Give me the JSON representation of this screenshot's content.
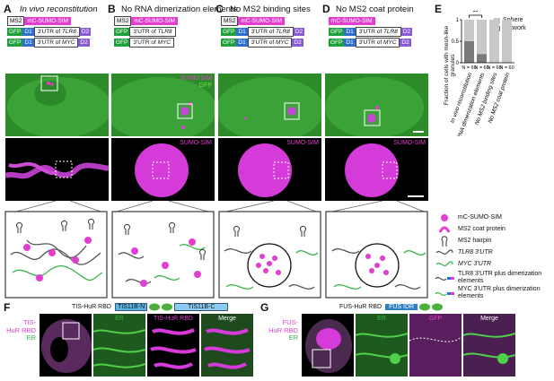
{
  "panels": {
    "A": {
      "letter": "A",
      "title": "In vivo reconstitution",
      "c1": {
        "a": "MS2",
        "b": "mC-SUMO-SIM"
      },
      "c2": {
        "a": "GFP",
        "b": "D1",
        "c": "3'UTR of",
        "d": "TLR8",
        "e": "D2"
      },
      "c3": {
        "a": "GFP",
        "b": "D1",
        "c": "3'UTR of",
        "d": "MYC",
        "e": "D2"
      }
    },
    "B": {
      "letter": "B",
      "title": "No RNA dimerization elements",
      "c1": {
        "a": "MS2",
        "b": "mC-SUMO-SIM"
      },
      "c2": {
        "a": "GFP",
        "c": "3'UTR of",
        "d": "TLR8"
      },
      "c3": {
        "a": "GFP",
        "c": "3'UTR of",
        "d": "MYC"
      }
    },
    "C": {
      "letter": "C",
      "title": "No MS2 binding sites",
      "c1": {
        "a": "MS2",
        "b": "mC-SUMO-SIM"
      },
      "c2": {
        "a": "GFP",
        "b": "D1",
        "c": "3'UTR of",
        "d": "TLR8",
        "e": "D2"
      },
      "c3": {
        "a": "GFP",
        "b": "D1",
        "c": "3'UTR of",
        "d": "MYC",
        "e": "D2"
      }
    },
    "D": {
      "letter": "D",
      "title": "No MS2 coat protein",
      "c1": {
        "b": "mC-SUMO-SIM"
      },
      "c2": {
        "a": "GFP",
        "b": "D1",
        "c": "3'UTR of",
        "d": "TLR8",
        "e": "D2"
      },
      "c3": {
        "a": "GFP",
        "b": "D1",
        "c": "3'UTR of",
        "d": "MYC",
        "e": "D2"
      }
    }
  },
  "channels": {
    "sumo": "SUMO-SIM",
    "gfp": "GFP"
  },
  "E": {
    "letter": "E",
    "ylabel": "Fraction of cells with mesh-like granules",
    "legend": [
      {
        "name": "Sphere",
        "color": "#c8c8c8"
      },
      {
        "name": "Network",
        "color": "#7a7a7a"
      }
    ],
    "significance": "**",
    "yticks": [
      "0",
      "0.5",
      "1"
    ],
    "categories": [
      "In vivo reconstitution",
      "No RNA dimerization elements",
      "No MS2 binding sites",
      "No MS2 coat protein"
    ],
    "n_labels": [
      "N = 60",
      "N = 60",
      "N = 60",
      "N = 60"
    ]
  },
  "chart_data": {
    "type": "bar",
    "categories": [
      "In vivo reconstitution",
      "No RNA dimerization elements",
      "No MS2 binding sites",
      "No MS2 coat protein"
    ],
    "series": [
      {
        "name": "Network",
        "values": [
          0.5,
          0.2,
          0,
          0
        ]
      },
      {
        "name": "Sphere",
        "values": [
          0.5,
          0.8,
          1,
          1
        ]
      }
    ],
    "ylabel": "Fraction of cells with mesh-like granules",
    "ylim": [
      0,
      1
    ]
  },
  "legend_items": [
    {
      "label": "mC-SUMO-SIM",
      "icon": "magenta-dot"
    },
    {
      "label": "MS2 coat protein",
      "icon": "coat-protein"
    },
    {
      "label": "MS2 hairpin",
      "icon": "hairpin"
    },
    {
      "label": "TLR8 3'UTR",
      "icon": "grey-wave"
    },
    {
      "label": "MYC 3'UTR",
      "icon": "green-wave"
    },
    {
      "label": "TLR8 3'UTR plus dimerization elements",
      "icon": "grey-wave-dim"
    },
    {
      "label": "MYC 3'UTR plus dimerization elements",
      "icon": "green-wave-dim"
    }
  ],
  "F": {
    "letter": "F",
    "construct": "TIS-HuR RBD",
    "seg1": "TIS11B-N",
    "seg2": "TIS11B-C",
    "side1": "TIS-",
    "side2": "HuR RBD",
    "side3": "ER",
    "t1": "ER",
    "t2": "TIS-HuR RBD",
    "t3": "Merge"
  },
  "G": {
    "letter": "G",
    "construct": "FUS-HuR RBD",
    "seg1": "FUS IDR",
    "side1": "FUS-",
    "side2": "HuR RBD",
    "side3": "ER",
    "t1": "ER",
    "t2": "GFP",
    "t3": "Merge"
  }
}
